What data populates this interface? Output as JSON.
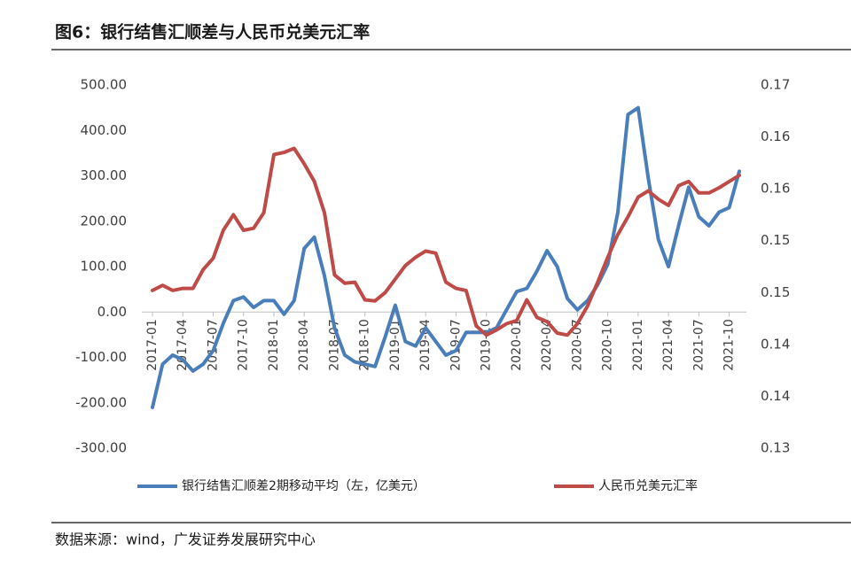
{
  "chart_data": {
    "type": "line",
    "title": "图6：银行结售汇顺差与人民币兑美元汇率",
    "source": "数据来源：wind，广发证券发展研究中心",
    "categories": [
      "2017-01",
      null,
      null,
      "2017-04",
      null,
      null,
      "2017-07",
      null,
      null,
      "2017-10",
      null,
      null,
      "2018-01",
      null,
      null,
      "2018-04",
      null,
      null,
      "2018-07",
      null,
      null,
      "2018-10",
      null,
      null,
      "2019-01",
      null,
      null,
      "2019-04",
      null,
      null,
      "2019-07",
      null,
      null,
      "2019-10",
      null,
      null,
      "2020-01",
      null,
      null,
      "2020-04",
      null,
      null,
      "2020-07",
      null,
      null,
      "2020-10",
      null,
      null,
      "2021-01",
      null,
      null,
      "2021-04",
      null,
      null,
      "2021-07",
      null,
      null,
      "2021-10",
      null
    ],
    "ylim": [
      -300,
      500
    ],
    "yticks": [
      {
        "value": -300,
        "label": "-300.00"
      },
      {
        "value": -200,
        "label": "-200.00"
      },
      {
        "value": -100,
        "label": "-100.00"
      },
      {
        "value": 0,
        "label": "0.00"
      },
      {
        "value": 100,
        "label": "100.00"
      },
      {
        "value": 200,
        "label": "200.00"
      },
      {
        "value": 300,
        "label": "300.00"
      },
      {
        "value": 400,
        "label": "400.00"
      },
      {
        "value": 500,
        "label": "500.00"
      }
    ],
    "y2lim": [
      0.135,
      0.17
    ],
    "y2ticks": [
      {
        "value": 0.135,
        "label": "0.13"
      },
      {
        "value": 0.14,
        "label": "0.14"
      },
      {
        "value": 0.145,
        "label": "0.14"
      },
      {
        "value": 0.15,
        "label": "0.15"
      },
      {
        "value": 0.155,
        "label": "0.15"
      },
      {
        "value": 0.16,
        "label": "0.16"
      },
      {
        "value": 0.165,
        "label": "0.16"
      },
      {
        "value": 0.17,
        "label": "0.17"
      }
    ],
    "grid": false,
    "legend": "bottom",
    "series": [
      {
        "name": "银行结售汇顺差2期移动平均（左，亿美元）",
        "color": "#4a7ebb",
        "axis": "y",
        "values": [
          -210,
          -115,
          -95,
          -105,
          -130,
          -115,
          -85,
          -25,
          25,
          33,
          10,
          25,
          25,
          -5,
          25,
          140,
          165,
          80,
          -35,
          -95,
          -110,
          -115,
          -120,
          -55,
          15,
          -65,
          -75,
          -35,
          -65,
          -95,
          -85,
          -45,
          -45,
          -45,
          -35,
          5,
          45,
          52,
          90,
          135,
          100,
          30,
          5,
          25,
          60,
          105,
          220,
          435,
          450,
          295,
          160,
          100,
          190,
          275,
          210,
          190,
          220,
          230,
          310
        ]
      },
      {
        "name": "人民币兑美元汇率",
        "color": "#be4b48",
        "axis": "y2",
        "values": [
          0.1502,
          0.1507,
          0.1502,
          0.1504,
          0.1504,
          0.1522,
          0.1533,
          0.156,
          0.1575,
          0.156,
          0.1562,
          0.1577,
          0.1633,
          0.1635,
          0.1639,
          0.1624,
          0.1607,
          0.1577,
          0.1517,
          0.1509,
          0.151,
          0.1493,
          0.1492,
          0.15,
          0.1513,
          0.1526,
          0.1534,
          0.154,
          0.1538,
          0.151,
          0.1504,
          0.1502,
          0.1468,
          0.1459,
          0.1464,
          0.147,
          0.1473,
          0.1493,
          0.1476,
          0.1472,
          0.1461,
          0.1459,
          0.147,
          0.1487,
          0.151,
          0.1534,
          0.1556,
          0.1573,
          0.1592,
          0.1598,
          0.159,
          0.1584,
          0.1603,
          0.1607,
          0.1596,
          0.1596,
          0.1601,
          0.1607,
          0.1613
        ]
      }
    ]
  }
}
